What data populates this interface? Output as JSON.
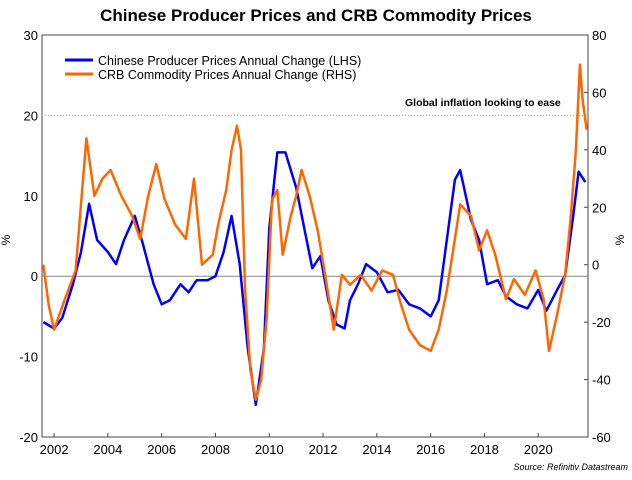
{
  "chart_data": {
    "type": "line",
    "title": "Chinese Producer Prices and CRB Commodity Prices",
    "ylabel_left": "%",
    "ylabel_right": "%",
    "ylim_left": [
      -20,
      30
    ],
    "ylim_right": [
      -60,
      80
    ],
    "xlim": [
      2001.55,
      2021.85
    ],
    "yticks_left": [
      30,
      20,
      10,
      0,
      -10,
      -20
    ],
    "yticks_right": [
      80,
      60,
      40,
      20,
      0,
      -20,
      -40,
      -60
    ],
    "xticks": [
      "2002",
      "2004",
      "2006",
      "2008",
      "2010",
      "2012",
      "2014",
      "2016",
      "2018",
      "2020"
    ],
    "annotation": "Global inflation looking to ease",
    "source": "Source: Refinitiv Datastream",
    "legend_position": "top-left",
    "series": [
      {
        "name": "Chinese Producer Prices Annual Change (LHS)",
        "axis": "left",
        "color": "#0000ff",
        "x": [
          2001.6,
          2002.0,
          2002.3,
          2002.7,
          2003.0,
          2003.3,
          2003.6,
          2004.0,
          2004.3,
          2004.6,
          2005.0,
          2005.3,
          2005.7,
          2006.0,
          2006.3,
          2006.7,
          2007.0,
          2007.3,
          2007.7,
          2008.0,
          2008.3,
          2008.6,
          2008.9,
          2009.2,
          2009.5,
          2009.8,
          2010.0,
          2010.3,
          2010.6,
          2011.0,
          2011.3,
          2011.6,
          2011.9,
          2012.2,
          2012.5,
          2012.8,
          2013.0,
          2013.3,
          2013.6,
          2014.0,
          2014.4,
          2014.8,
          2015.2,
          2015.6,
          2016.0,
          2016.3,
          2016.6,
          2016.9,
          2017.1,
          2017.5,
          2017.8,
          2018.1,
          2018.5,
          2018.8,
          2019.2,
          2019.6,
          2020.0,
          2020.3,
          2020.7,
          2021.0,
          2021.3,
          2021.5,
          2021.75
        ],
        "y": [
          -5.7,
          -6.5,
          -5.2,
          -1,
          3,
          9,
          4.5,
          3,
          1.5,
          4.5,
          7.5,
          4,
          -1,
          -3.5,
          -3,
          -1,
          -2,
          -0.5,
          -0.5,
          0,
          3,
          7.5,
          1.5,
          -9,
          -16,
          -9,
          6,
          15.4,
          15.4,
          11,
          6,
          1,
          2.5,
          -3,
          -6,
          -6.5,
          -3,
          -1,
          1.5,
          0.5,
          -2,
          -1.7,
          -3.5,
          -4,
          -5,
          -3,
          4.5,
          12,
          13.2,
          7,
          4.5,
          -1,
          -0.5,
          -2.5,
          -3.5,
          -4,
          -1.7,
          -4.3,
          -1.7,
          0.1,
          7.5,
          13,
          11.7
        ]
      },
      {
        "name": "CRB Commodity Prices Annual Change (RHS)",
        "axis": "right",
        "color": "#ff6600",
        "x": [
          2001.6,
          2001.8,
          2002.0,
          2002.4,
          2002.8,
          2003.0,
          2003.2,
          2003.5,
          2003.8,
          2004.1,
          2004.5,
          2004.9,
          2005.2,
          2005.5,
          2005.8,
          2006.1,
          2006.5,
          2006.9,
          2007.2,
          2007.5,
          2007.9,
          2008.1,
          2008.4,
          2008.6,
          2008.8,
          2008.95,
          2009.1,
          2009.3,
          2009.5,
          2009.7,
          2009.9,
          2010.1,
          2010.3,
          2010.5,
          2010.8,
          2011.0,
          2011.2,
          2011.5,
          2011.8,
          2012.1,
          2012.4,
          2012.7,
          2013.0,
          2013.4,
          2013.8,
          2014.2,
          2014.6,
          2014.9,
          2015.2,
          2015.6,
          2016.0,
          2016.3,
          2016.6,
          2016.9,
          2017.1,
          2017.5,
          2017.8,
          2018.1,
          2018.4,
          2018.8,
          2019.1,
          2019.5,
          2019.9,
          2020.2,
          2020.4,
          2020.7,
          2021.0,
          2021.2,
          2021.4,
          2021.55,
          2021.65,
          2021.8
        ],
        "y": [
          0,
          -14,
          -22.6,
          -12,
          -2,
          21,
          44,
          24,
          30,
          33,
          24,
          17,
          9,
          24,
          35,
          23,
          14,
          9,
          30,
          0,
          3.5,
          14,
          26,
          40,
          48.4,
          40,
          -9,
          -36.6,
          -47,
          -40,
          -19,
          22.6,
          26,
          3.5,
          17,
          24,
          33,
          24,
          12,
          -5,
          -22.6,
          -3.5,
          -7,
          -3.5,
          -9,
          -2,
          -3.5,
          -14,
          -22.6,
          -28,
          -30,
          -22.6,
          -9,
          9,
          21,
          17,
          5,
          12,
          3.5,
          -12,
          -5,
          -10.5,
          -2,
          -12,
          -30,
          -17.4,
          -3.5,
          15.7,
          40,
          69.7,
          57.5,
          47
        ]
      }
    ]
  }
}
